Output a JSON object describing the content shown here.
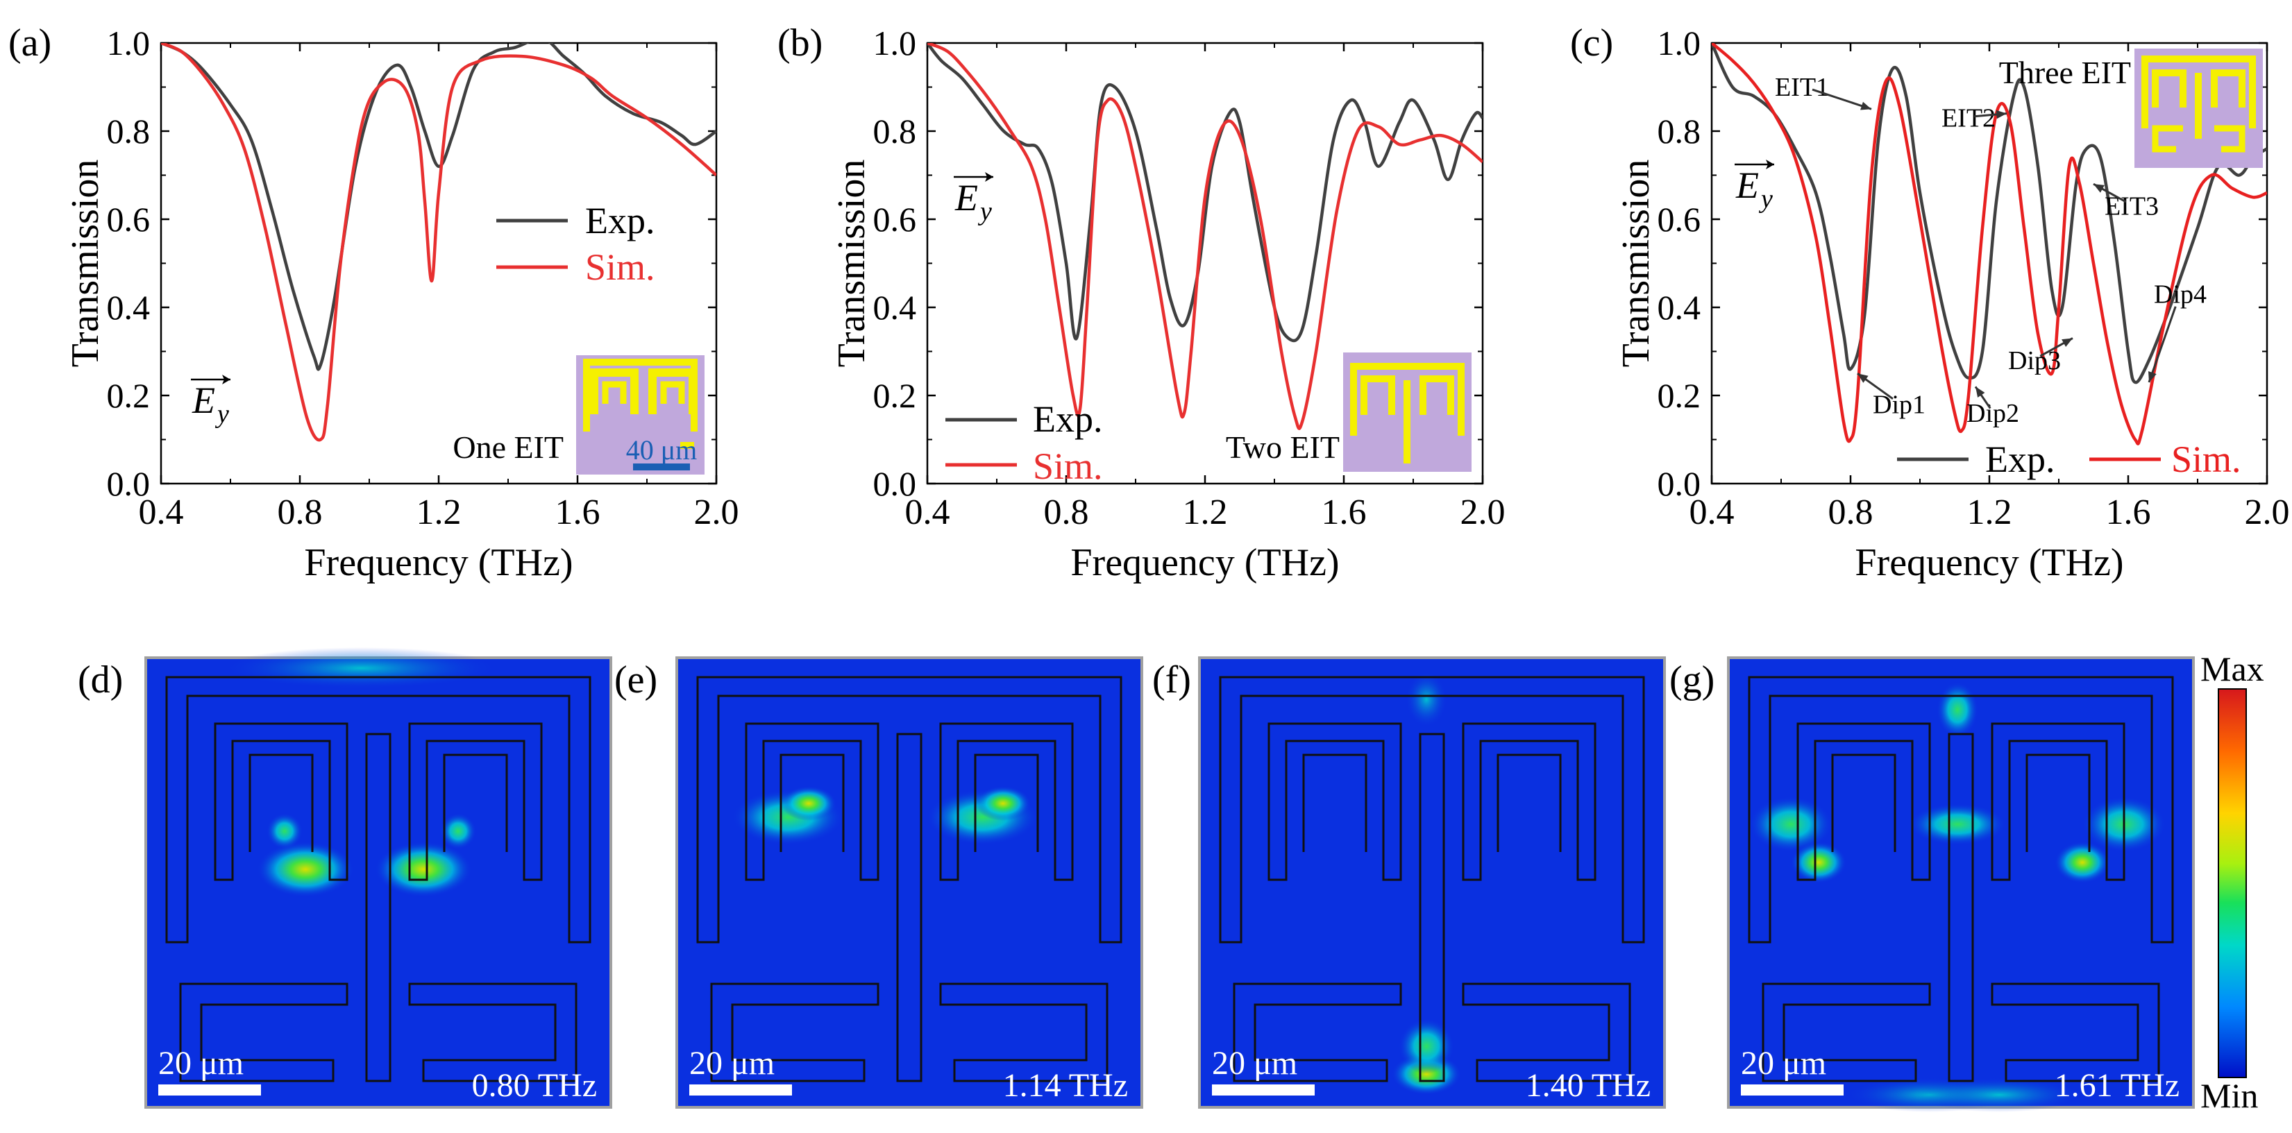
{
  "panels": {
    "a": "(a)",
    "b": "(b)",
    "c": "(c)",
    "d": "(d)",
    "e": "(e)",
    "f": "(f)",
    "g": "(g)"
  },
  "chart_data": [
    {
      "type": "line",
      "panel": "(a)",
      "xlabel": "Frequency (THz)",
      "ylabel": "Transmission",
      "xlim": [
        0.4,
        2.0
      ],
      "ylim": [
        0.0,
        1.0
      ],
      "xticks": [
        "0.4",
        "0.8",
        "1.2",
        "1.6",
        "2.0"
      ],
      "yticks": [
        "0.0",
        "0.2",
        "0.4",
        "0.6",
        "0.8",
        "1.0"
      ],
      "field_label": "E",
      "field_sub": "y",
      "annotation": "One EIT",
      "inset_scale": "40 μm",
      "series": [
        {
          "name": "Exp.",
          "color": "#404040",
          "x": [
            0.4,
            0.46,
            0.52,
            0.6,
            0.66,
            0.72,
            0.78,
            0.84,
            0.86,
            0.9,
            0.96,
            1.02,
            1.08,
            1.12,
            1.16,
            1.2,
            1.24,
            1.3,
            1.36,
            1.42,
            1.5,
            1.56,
            1.62,
            1.68,
            1.76,
            1.84,
            1.9,
            1.94,
            2.0
          ],
          "y": [
            1.0,
            0.98,
            0.94,
            0.86,
            0.78,
            0.62,
            0.44,
            0.29,
            0.27,
            0.42,
            0.72,
            0.89,
            0.95,
            0.9,
            0.8,
            0.72,
            0.79,
            0.94,
            0.98,
            0.99,
            1.01,
            0.97,
            0.93,
            0.88,
            0.84,
            0.82,
            0.79,
            0.77,
            0.8
          ]
        },
        {
          "name": "Sim.",
          "color": "#e83030",
          "x": [
            0.4,
            0.46,
            0.52,
            0.58,
            0.64,
            0.7,
            0.76,
            0.82,
            0.86,
            0.88,
            0.92,
            0.98,
            1.04,
            1.1,
            1.14,
            1.16,
            1.18,
            1.2,
            1.24,
            1.32,
            1.44,
            1.56,
            1.64,
            1.7,
            1.8,
            1.9,
            2.0
          ],
          "y": [
            1.0,
            0.98,
            0.93,
            0.86,
            0.76,
            0.58,
            0.36,
            0.15,
            0.1,
            0.18,
            0.52,
            0.82,
            0.91,
            0.9,
            0.8,
            0.64,
            0.46,
            0.66,
            0.9,
            0.96,
            0.97,
            0.95,
            0.92,
            0.88,
            0.83,
            0.77,
            0.7
          ]
        }
      ]
    },
    {
      "type": "line",
      "panel": "(b)",
      "xlabel": "Frequency (THz)",
      "ylabel": "Transmission",
      "xlim": [
        0.4,
        2.0
      ],
      "ylim": [
        0.0,
        1.0
      ],
      "xticks": [
        "0.4",
        "0.8",
        "1.2",
        "1.6",
        "2.0"
      ],
      "yticks": [
        "0.0",
        "0.2",
        "0.4",
        "0.6",
        "0.8",
        "1.0"
      ],
      "field_label": "E",
      "field_sub": "y",
      "annotation": "Two EIT",
      "series": [
        {
          "name": "Exp.",
          "color": "#404040",
          "x": [
            0.4,
            0.44,
            0.5,
            0.56,
            0.62,
            0.68,
            0.72,
            0.76,
            0.8,
            0.83,
            0.87,
            0.9,
            0.94,
            1.0,
            1.06,
            1.1,
            1.14,
            1.18,
            1.22,
            1.27,
            1.3,
            1.34,
            1.4,
            1.44,
            1.48,
            1.52,
            1.57,
            1.62,
            1.66,
            1.7,
            1.76,
            1.8,
            1.86,
            1.9,
            1.94,
            1.98,
            2.0
          ],
          "y": [
            1.0,
            0.96,
            0.92,
            0.86,
            0.8,
            0.77,
            0.76,
            0.68,
            0.5,
            0.33,
            0.6,
            0.86,
            0.9,
            0.8,
            0.58,
            0.42,
            0.36,
            0.48,
            0.72,
            0.84,
            0.82,
            0.64,
            0.4,
            0.33,
            0.35,
            0.52,
            0.78,
            0.87,
            0.82,
            0.72,
            0.82,
            0.87,
            0.78,
            0.69,
            0.78,
            0.84,
            0.83
          ]
        },
        {
          "name": "Sim.",
          "color": "#e83030",
          "x": [
            0.4,
            0.46,
            0.52,
            0.58,
            0.64,
            0.7,
            0.74,
            0.78,
            0.82,
            0.84,
            0.86,
            0.89,
            0.92,
            0.96,
            1.0,
            1.06,
            1.12,
            1.14,
            1.16,
            1.2,
            1.25,
            1.3,
            1.36,
            1.42,
            1.46,
            1.48,
            1.52,
            1.58,
            1.64,
            1.7,
            1.76,
            1.82,
            1.88,
            1.94,
            2.0
          ],
          "y": [
            1.0,
            0.98,
            0.93,
            0.87,
            0.8,
            0.72,
            0.6,
            0.4,
            0.2,
            0.17,
            0.4,
            0.78,
            0.87,
            0.84,
            0.72,
            0.48,
            0.2,
            0.16,
            0.3,
            0.65,
            0.81,
            0.79,
            0.6,
            0.3,
            0.15,
            0.14,
            0.3,
            0.62,
            0.8,
            0.81,
            0.77,
            0.78,
            0.79,
            0.77,
            0.73
          ]
        }
      ]
    },
    {
      "type": "line",
      "panel": "(c)",
      "xlabel": "Frequency (THz)",
      "ylabel": "Transmission",
      "xlim": [
        0.4,
        2.0
      ],
      "ylim": [
        0.0,
        1.0
      ],
      "xticks": [
        "0.4",
        "0.8",
        "1.2",
        "1.6",
        "2.0"
      ],
      "yticks": [
        "0.0",
        "0.2",
        "0.4",
        "0.6",
        "0.8",
        "1.0"
      ],
      "field_label": "E",
      "field_sub": "y",
      "annotation": "Three EIT",
      "labels": [
        {
          "text": "EIT1",
          "x": 0.66,
          "y": 0.88,
          "tx": 0.86,
          "ty": 0.85
        },
        {
          "text": "EIT2",
          "x": 1.14,
          "y": 0.81,
          "tx": 1.25,
          "ty": 0.84
        },
        {
          "text": "EIT3",
          "x": 1.61,
          "y": 0.61,
          "tx": 1.5,
          "ty": 0.68
        },
        {
          "text": "Dip1",
          "x": 0.94,
          "y": 0.16,
          "tx": 0.82,
          "ty": 0.25
        },
        {
          "text": "Dip2",
          "x": 1.21,
          "y": 0.14,
          "tx": 1.16,
          "ty": 0.22
        },
        {
          "text": "Dip3",
          "x": 1.33,
          "y": 0.26,
          "tx": 1.44,
          "ty": 0.33
        },
        {
          "text": "Dip4",
          "x": 1.75,
          "y": 0.41,
          "tx": 1.66,
          "ty": 0.23
        }
      ],
      "series": [
        {
          "name": "Exp.",
          "color": "#404040",
          "x": [
            0.4,
            0.46,
            0.52,
            0.58,
            0.64,
            0.7,
            0.74,
            0.78,
            0.8,
            0.84,
            0.88,
            0.92,
            0.96,
            1.0,
            1.06,
            1.1,
            1.14,
            1.18,
            1.22,
            1.27,
            1.3,
            1.34,
            1.38,
            1.41,
            1.45,
            1.48,
            1.52,
            1.56,
            1.6,
            1.62,
            1.66,
            1.72,
            1.8,
            1.86,
            1.92,
            1.96,
            2.0
          ],
          "y": [
            1.0,
            0.9,
            0.88,
            0.84,
            0.76,
            0.66,
            0.52,
            0.34,
            0.26,
            0.38,
            0.78,
            0.94,
            0.88,
            0.66,
            0.42,
            0.3,
            0.24,
            0.3,
            0.64,
            0.88,
            0.9,
            0.72,
            0.44,
            0.4,
            0.68,
            0.76,
            0.74,
            0.55,
            0.3,
            0.23,
            0.28,
            0.4,
            0.58,
            0.72,
            0.7,
            0.74,
            0.76
          ]
        },
        {
          "name": "Sim.",
          "color": "#e82020",
          "x": [
            0.4,
            0.46,
            0.52,
            0.58,
            0.64,
            0.7,
            0.74,
            0.78,
            0.8,
            0.82,
            0.86,
            0.9,
            0.94,
            1.0,
            1.06,
            1.1,
            1.12,
            1.14,
            1.18,
            1.22,
            1.26,
            1.3,
            1.34,
            1.38,
            1.4,
            1.43,
            1.46,
            1.5,
            1.54,
            1.58,
            1.62,
            1.64,
            1.7,
            1.78,
            1.84,
            1.9,
            1.96,
            2.0
          ],
          "y": [
            1.0,
            0.96,
            0.91,
            0.84,
            0.74,
            0.56,
            0.36,
            0.14,
            0.1,
            0.2,
            0.7,
            0.91,
            0.86,
            0.6,
            0.32,
            0.16,
            0.12,
            0.2,
            0.58,
            0.84,
            0.82,
            0.58,
            0.34,
            0.25,
            0.4,
            0.72,
            0.68,
            0.5,
            0.32,
            0.18,
            0.1,
            0.12,
            0.35,
            0.62,
            0.7,
            0.67,
            0.65,
            0.66
          ]
        }
      ]
    }
  ],
  "field_maps": [
    {
      "panel": "(d)",
      "scale": "20 μm",
      "freq": "0.80 THz"
    },
    {
      "panel": "(e)",
      "scale": "20 μm",
      "freq": "1.14 THz"
    },
    {
      "panel": "(f)",
      "scale": "20 μm",
      "freq": "1.40 THz"
    },
    {
      "panel": "(g)",
      "scale": "20 μm",
      "freq": "1.61 THz"
    }
  ],
  "colorbar": {
    "max": "Max",
    "min": "Min"
  },
  "colors": {
    "inset_bg": "#c0a8dc",
    "resonator": "#f5f000",
    "scale_bar": "#1a5fb4",
    "field_bg": "#0a30e0"
  }
}
